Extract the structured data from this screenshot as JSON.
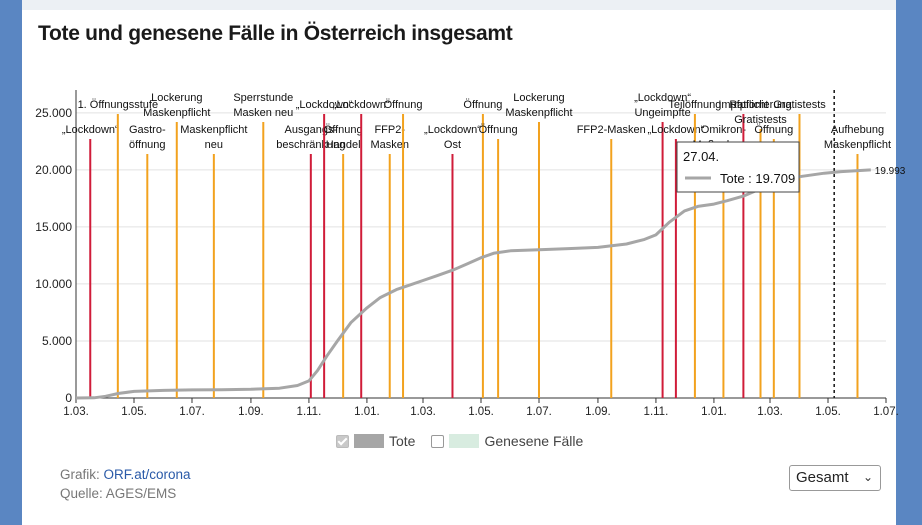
{
  "page": {
    "title": "Tote und genesene Fälle in Österreich insgesamt",
    "source_label": "Grafik:",
    "source_link": "ORF.at/corona",
    "source2": "Quelle: AGES/EMS",
    "dropdown_value": "Gesamt"
  },
  "legend": [
    {
      "label": "Tote",
      "checked": true,
      "color": "#a6a6a6"
    },
    {
      "label": "Genesene Fälle",
      "checked": false,
      "color": "#d8ece0"
    }
  ],
  "tooltip": {
    "date": "27.04.",
    "series": "Tote",
    "value": "19.709"
  },
  "colors": {
    "red": "#d01c39",
    "orange": "#f2a21e",
    "line": "#a6a6a6"
  },
  "chart_data": {
    "type": "line",
    "title": "Tote und genesene Fälle in Österreich insgesamt",
    "xlabel": "",
    "ylabel": "",
    "x_range": [
      "2020-03-01",
      "2022-07-01"
    ],
    "ylim": [
      0,
      27000
    ],
    "yticks": [
      {
        "v": 0,
        "label": "0"
      },
      {
        "v": 5000,
        "label": "5.000"
      },
      {
        "v": 10000,
        "label": "10.000"
      },
      {
        "v": 15000,
        "label": "15.000"
      },
      {
        "v": 20000,
        "label": "20.000"
      },
      {
        "v": 25000,
        "label": "25.000"
      }
    ],
    "xticks": [
      {
        "date": "2020-03-01",
        "label": "1.03."
      },
      {
        "date": "2020-05-01",
        "label": "1.05."
      },
      {
        "date": "2020-07-01",
        "label": "1.07."
      },
      {
        "date": "2020-09-01",
        "label": "1.09."
      },
      {
        "date": "2020-11-01",
        "label": "1.11."
      },
      {
        "date": "2021-01-01",
        "label": "1.01."
      },
      {
        "date": "2021-03-01",
        "label": "1.03."
      },
      {
        "date": "2021-05-01",
        "label": "1.05."
      },
      {
        "date": "2021-07-01",
        "label": "1.07."
      },
      {
        "date": "2021-09-01",
        "label": "1.09."
      },
      {
        "date": "2021-11-01",
        "label": "1.11."
      },
      {
        "date": "2022-01-01",
        "label": "1.01."
      },
      {
        "date": "2022-03-01",
        "label": "1.03."
      },
      {
        "date": "2022-05-01",
        "label": "1.05."
      },
      {
        "date": "2022-07-01",
        "label": "1.07."
      }
    ],
    "series": [
      {
        "name": "Tote",
        "points": [
          [
            "2020-03-01",
            0
          ],
          [
            "2020-03-20",
            20
          ],
          [
            "2020-04-01",
            150
          ],
          [
            "2020-04-15",
            400
          ],
          [
            "2020-05-01",
            580
          ],
          [
            "2020-06-01",
            670
          ],
          [
            "2020-07-01",
            710
          ],
          [
            "2020-08-01",
            730
          ],
          [
            "2020-09-01",
            760
          ],
          [
            "2020-10-01",
            860
          ],
          [
            "2020-10-20",
            1100
          ],
          [
            "2020-11-01",
            1500
          ],
          [
            "2020-11-10",
            2400
          ],
          [
            "2020-11-20",
            3700
          ],
          [
            "2020-12-01",
            5000
          ],
          [
            "2020-12-15",
            6600
          ],
          [
            "2021-01-01",
            7900
          ],
          [
            "2021-01-15",
            8800
          ],
          [
            "2021-02-01",
            9500
          ],
          [
            "2021-02-15",
            9900
          ],
          [
            "2021-03-01",
            10300
          ],
          [
            "2021-03-15",
            10700
          ],
          [
            "2021-04-01",
            11200
          ],
          [
            "2021-04-15",
            11700
          ],
          [
            "2021-05-01",
            12300
          ],
          [
            "2021-05-15",
            12700
          ],
          [
            "2021-06-01",
            12900
          ],
          [
            "2021-07-01",
            13000
          ],
          [
            "2021-08-01",
            13100
          ],
          [
            "2021-09-01",
            13200
          ],
          [
            "2021-10-01",
            13500
          ],
          [
            "2021-10-20",
            13900
          ],
          [
            "2021-11-01",
            14300
          ],
          [
            "2021-11-15",
            15400
          ],
          [
            "2021-12-01",
            16400
          ],
          [
            "2021-12-15",
            16800
          ],
          [
            "2022-01-01",
            17000
          ],
          [
            "2022-01-15",
            17300
          ],
          [
            "2022-02-01",
            17700
          ],
          [
            "2022-02-15",
            18200
          ],
          [
            "2022-03-01",
            18700
          ],
          [
            "2022-03-15",
            19000
          ],
          [
            "2022-04-01",
            19400
          ],
          [
            "2022-04-27",
            19709
          ],
          [
            "2022-05-15",
            19850
          ],
          [
            "2022-06-15",
            19993
          ]
        ]
      }
    ],
    "end_label": "19.993",
    "today_marker": "2022-04-27",
    "events": [
      {
        "date": "2020-03-16",
        "type": "red",
        "label": [
          "„Lockdown“"
        ],
        "row": 2
      },
      {
        "date": "2020-04-14",
        "type": "orange",
        "label": [
          "1. Öffnungsstufe"
        ],
        "row": 0
      },
      {
        "date": "2020-05-15",
        "type": "orange",
        "label": [
          "Gastro-",
          "öffnung"
        ],
        "row": 2
      },
      {
        "date": "2020-06-15",
        "type": "orange",
        "label": [
          "Lockerung",
          "Maskenpflicht"
        ],
        "row": 1
      },
      {
        "date": "2020-07-24",
        "type": "orange",
        "label": [
          "Maskenpflicht",
          "neu"
        ],
        "row": 2
      },
      {
        "date": "2020-09-14",
        "type": "orange",
        "label": [
          "Sperrstunde",
          "Masken neu"
        ],
        "row": 1
      },
      {
        "date": "2020-11-03",
        "type": "red",
        "label": [
          "Ausgangs-",
          "beschränkung"
        ],
        "row": 2
      },
      {
        "date": "2020-11-17",
        "type": "red",
        "label": [
          "„Lockdown“"
        ],
        "row": 0
      },
      {
        "date": "2020-12-07",
        "type": "orange",
        "label": [
          "Öffnung",
          "Handel"
        ],
        "row": 2
      },
      {
        "date": "2020-12-26",
        "type": "red",
        "label": [
          "„Lockdown“"
        ],
        "row": 0
      },
      {
        "date": "2021-01-25",
        "type": "orange",
        "label": [
          "FFP2-",
          "Masken"
        ],
        "row": 2
      },
      {
        "date": "2021-02-08",
        "type": "orange",
        "label": [
          "Öffnung"
        ],
        "row": 0
      },
      {
        "date": "2021-04-01",
        "type": "red",
        "label": [
          "„Lockdown“",
          "Ost"
        ],
        "row": 2
      },
      {
        "date": "2021-05-03",
        "type": "orange",
        "label": [
          "Öffnung"
        ],
        "row": 0
      },
      {
        "date": "2021-05-19",
        "type": "orange",
        "label": [
          "Öffnung"
        ],
        "row": 2
      },
      {
        "date": "2021-07-01",
        "type": "orange",
        "label": [
          "Lockerung",
          "Maskenpflicht"
        ],
        "row": 1
      },
      {
        "date": "2021-09-15",
        "type": "orange",
        "label": [
          "FFP2-Masken"
        ],
        "row": 2
      },
      {
        "date": "2021-11-08",
        "type": "red",
        "label": [
          "„Lockdown“",
          "Ungeimpfte"
        ],
        "row": 1
      },
      {
        "date": "2021-11-22",
        "type": "red",
        "label": [
          "„Lockdown“"
        ],
        "row": 2
      },
      {
        "date": "2021-12-12",
        "type": "orange",
        "label": [
          "Teilöffnung"
        ],
        "row": 0
      },
      {
        "date": "2022-01-11",
        "type": "orange",
        "label": [
          "Omikron-",
          "Maßnahmen"
        ],
        "row": 2
      },
      {
        "date": "2022-02-01",
        "type": "red",
        "label": [
          "Impfpflicht"
        ],
        "row": 0
      },
      {
        "date": "2022-02-19",
        "type": "orange",
        "label": [
          "Rationierung",
          "Gratistests"
        ],
        "row": 0
      },
      {
        "date": "2022-03-05",
        "type": "orange",
        "label": [
          "Öffnung"
        ],
        "row": 2
      },
      {
        "date": "2022-04-01",
        "type": "orange",
        "label": [
          "Gratistests"
        ],
        "row": 0
      },
      {
        "date": "2022-06-01",
        "type": "orange",
        "label": [
          "Aufhebung",
          "Maskenpflicht"
        ],
        "row": 2
      }
    ]
  }
}
